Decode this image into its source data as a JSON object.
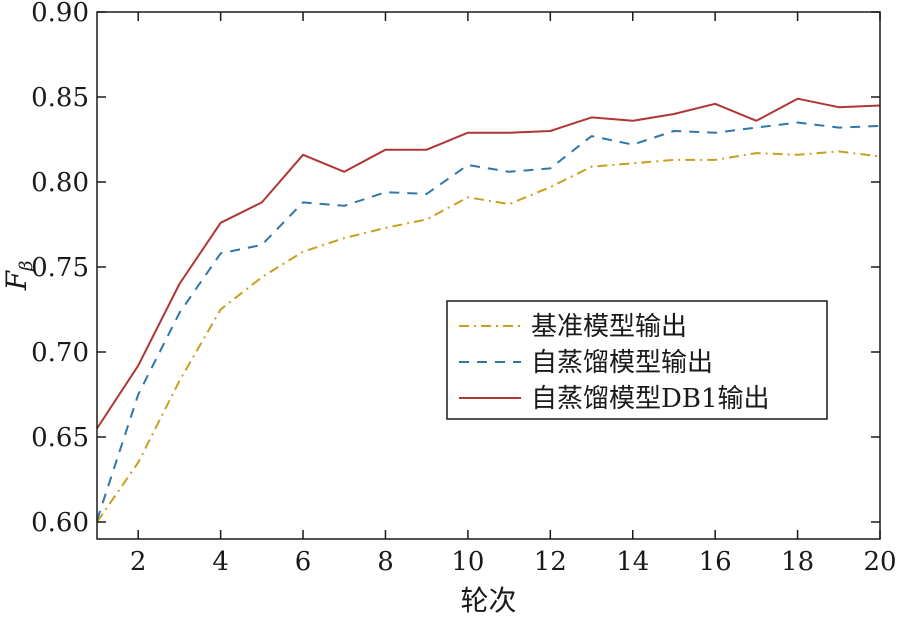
{
  "chart_data": {
    "type": "line",
    "title": "",
    "xlabel": "轮次",
    "ylabel": "F_β",
    "ylabel_main": "F",
    "ylabel_sub": "β",
    "xlim": [
      1,
      20
    ],
    "ylim": [
      0.59,
      0.9
    ],
    "xticks": [
      2,
      4,
      6,
      8,
      10,
      12,
      14,
      16,
      18,
      20
    ],
    "yticks": [
      0.6,
      0.65,
      0.7,
      0.75,
      0.8,
      0.85,
      0.9
    ],
    "ytick_labels": [
      "0.60",
      "0.65",
      "0.70",
      "0.75",
      "0.80",
      "0.85",
      "0.90"
    ],
    "grid": false,
    "legend_position": "center-right",
    "x": [
      1,
      2,
      3,
      4,
      5,
      6,
      7,
      8,
      9,
      10,
      11,
      12,
      13,
      14,
      15,
      16,
      17,
      18,
      19,
      20
    ],
    "series": [
      {
        "name": "基准模型输出",
        "color": "#c8a020",
        "dash": "dashdot",
        "values": [
          0.6,
          0.635,
          0.683,
          0.725,
          0.744,
          0.759,
          0.767,
          0.773,
          0.778,
          0.791,
          0.787,
          0.797,
          0.809,
          0.811,
          0.813,
          0.813,
          0.817,
          0.816,
          0.818,
          0.815
        ]
      },
      {
        "name": "自蒸馏模型输出",
        "color": "#2e77a8",
        "dash": "dashed",
        "values": [
          0.601,
          0.675,
          0.723,
          0.758,
          0.763,
          0.788,
          0.786,
          0.794,
          0.793,
          0.81,
          0.806,
          0.808,
          0.827,
          0.822,
          0.83,
          0.829,
          0.832,
          0.835,
          0.832,
          0.833
        ]
      },
      {
        "name": "自蒸馏模型DB1输出",
        "color": "#b03535",
        "dash": "solid",
        "values": [
          0.655,
          0.692,
          0.74,
          0.776,
          0.788,
          0.816,
          0.806,
          0.819,
          0.819,
          0.829,
          0.829,
          0.83,
          0.838,
          0.836,
          0.84,
          0.846,
          0.836,
          0.849,
          0.844,
          0.845
        ]
      }
    ]
  }
}
